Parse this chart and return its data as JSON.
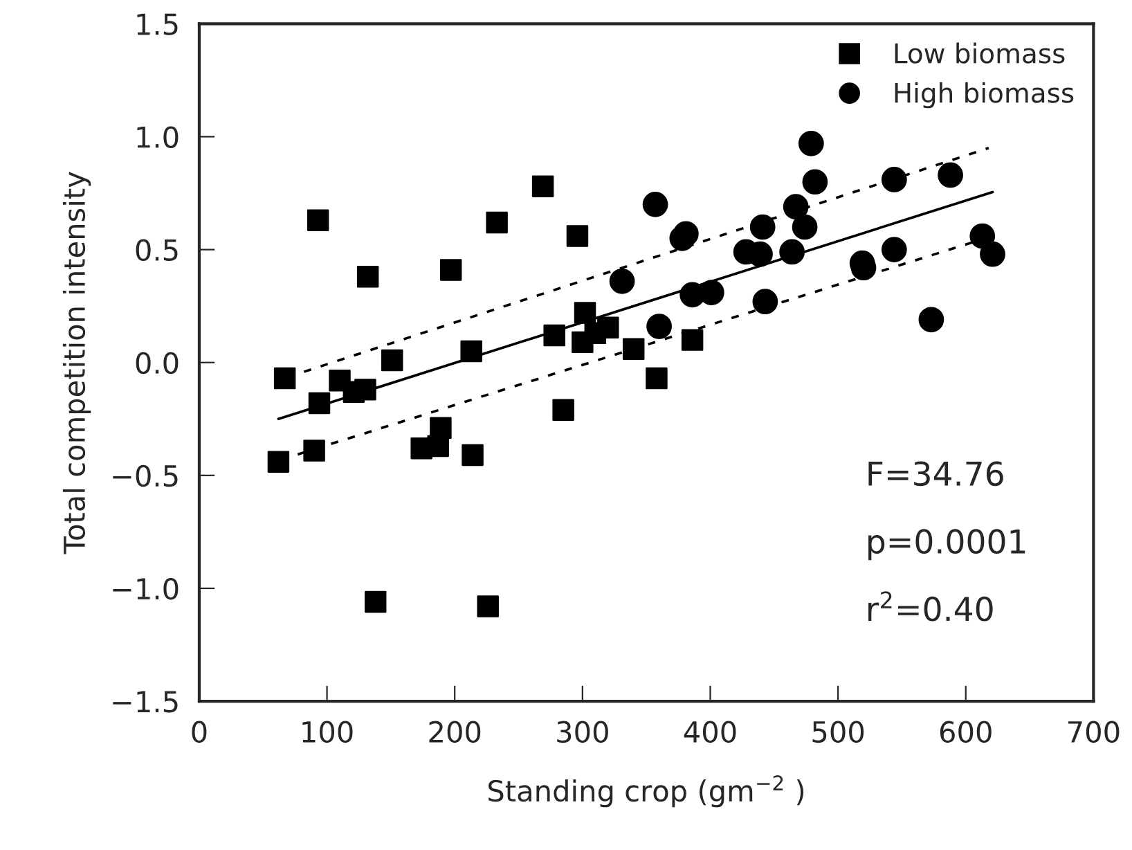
{
  "chart_data": {
    "type": "scatter",
    "xlabel": "Standing crop (gm$^{−2}$ )",
    "ylabel": "Total competition intensity",
    "xlim": [
      0,
      700
    ],
    "ylim": [
      -1.5,
      1.5
    ],
    "xticks": [
      0,
      100,
      200,
      300,
      400,
      500,
      600,
      700
    ],
    "yticks": [
      {
        "value": -1.5,
        "label": "−1.5"
      },
      {
        "value": -1,
        "label": "−1.0"
      },
      {
        "value": -0.5,
        "label": "−0.5"
      },
      {
        "value": 0,
        "label": "0.0"
      },
      {
        "value": 0.5,
        "label": "0.5"
      },
      {
        "value": 1,
        "label": "1.0"
      },
      {
        "value": 1.5,
        "label": "1.5"
      }
    ],
    "grid": false,
    "legend": "top right",
    "annotations": [
      "F=34.76",
      "p=0.0001",
      "r$^{2}$=0.40"
    ],
    "series": [
      {
        "name": "Low biomass",
        "marker": "square",
        "color": "#000000",
        "x": [
          67,
          93,
          132,
          197,
          233,
          269,
          296,
          151,
          213,
          278,
          302,
          300,
          320,
          310,
          340,
          386,
          358,
          285,
          110,
          94,
          121,
          130,
          62,
          90,
          174,
          187,
          189,
          214,
          138,
          226
        ],
        "values": [
          -0.07,
          0.63,
          0.38,
          0.41,
          0.62,
          0.78,
          0.56,
          0.01,
          0.05,
          0.12,
          0.22,
          0.09,
          0.155,
          0.13,
          0.06,
          0.1,
          -0.07,
          -0.21,
          -0.08,
          -0.18,
          -0.13,
          -0.12,
          -0.44,
          -0.39,
          -0.38,
          -0.37,
          -0.29,
          -0.41,
          -1.06,
          -1.08
        ]
      },
      {
        "name": "High biomass",
        "marker": "circle",
        "color": "#000000",
        "x": [
          357,
          381,
          378,
          331,
          360,
          386,
          401,
          428,
          439,
          441,
          443,
          467,
          474,
          464,
          479,
          482,
          519,
          520,
          544,
          544,
          588,
          573,
          613,
          621
        ],
        "values": [
          0.7,
          0.57,
          0.55,
          0.36,
          0.16,
          0.3,
          0.31,
          0.49,
          0.48,
          0.6,
          0.27,
          0.69,
          0.6,
          0.49,
          0.97,
          0.8,
          0.44,
          0.42,
          0.81,
          0.5,
          0.83,
          0.19,
          0.56,
          0.48
        ]
      },
      {
        "type": "line",
        "marker": "none",
        "line_style": "solid",
        "color": "#000000",
        "x": [
          62,
          621
        ],
        "values": [
          -0.25,
          0.755
        ]
      },
      {
        "type": "line",
        "marker": "none",
        "line_style": "dashed",
        "color": "#000000",
        "x": [
          69,
          618
        ],
        "values": [
          -0.065,
          0.95
        ]
      },
      {
        "type": "line",
        "marker": "none",
        "line_style": "dashed",
        "color": "#000000",
        "x": [
          64,
          621
        ],
        "values": [
          -0.43,
          0.56
        ]
      }
    ]
  }
}
